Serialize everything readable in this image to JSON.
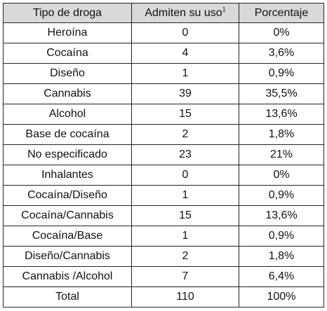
{
  "table": {
    "headers": {
      "drug_type": "Tipo de droga",
      "admit_use": "Admiten su uso",
      "admit_use_note": "1",
      "percentage": "Porcentaje"
    },
    "rows": [
      {
        "drug": "Heroína",
        "count": "0",
        "percent": "0%"
      },
      {
        "drug": "Cocaína",
        "count": "4",
        "percent": "3,6%"
      },
      {
        "drug": "Diseño",
        "count": "1",
        "percent": "0,9%"
      },
      {
        "drug": "Cannabis",
        "count": "39",
        "percent": "35,5%"
      },
      {
        "drug": "Alcohol",
        "count": "15",
        "percent": "13,6%"
      },
      {
        "drug": "Base de cocaína",
        "count": "2",
        "percent": "1,8%"
      },
      {
        "drug": "No especificado",
        "count": "23",
        "percent": "21%"
      },
      {
        "drug": "Inhalantes",
        "count": "0",
        "percent": "0%"
      },
      {
        "drug": "Cocaína/Diseño",
        "count": "1",
        "percent": "0,9%"
      },
      {
        "drug": "Cocaína/Cannabis",
        "count": "15",
        "percent": "13,6%"
      },
      {
        "drug": "Cocaína/Base",
        "count": "1",
        "percent": "0,9%"
      },
      {
        "drug": "Diseño/Cannabis",
        "count": "2",
        "percent": "1,8%"
      },
      {
        "drug": "Cannabis /Alcohol",
        "count": "7",
        "percent": "6,4%"
      },
      {
        "drug": "Total",
        "count": "110",
        "percent": "100%"
      }
    ]
  },
  "colors": {
    "header_background": "#d9d9d9",
    "border": "#222222",
    "text": "#111111"
  }
}
